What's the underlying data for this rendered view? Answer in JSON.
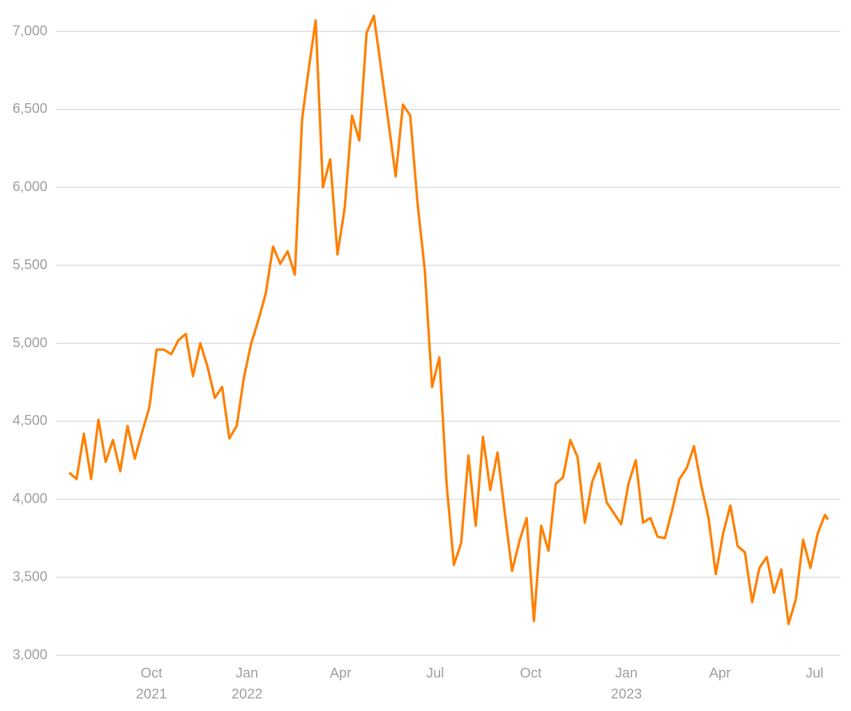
{
  "chart_data": {
    "type": "line",
    "x": [
      "2021-07-14",
      "2021-07-21",
      "2021-07-28",
      "2021-08-04",
      "2021-08-11",
      "2021-08-18",
      "2021-08-25",
      "2021-09-01",
      "2021-09-08",
      "2021-09-15",
      "2021-09-22",
      "2021-09-29",
      "2021-10-06",
      "2021-10-13",
      "2021-10-20",
      "2021-10-27",
      "2021-11-03",
      "2021-11-10",
      "2021-11-17",
      "2021-11-24",
      "2021-12-01",
      "2021-12-08",
      "2021-12-15",
      "2021-12-22",
      "2021-12-29",
      "2022-01-05",
      "2022-01-12",
      "2022-01-19",
      "2022-01-26",
      "2022-02-02",
      "2022-02-09",
      "2022-02-16",
      "2022-02-23",
      "2022-03-02",
      "2022-03-08",
      "2022-03-15",
      "2022-03-22",
      "2022-03-29",
      "2022-04-05",
      "2022-04-12",
      "2022-04-19",
      "2022-04-26",
      "2022-05-03",
      "2022-05-10",
      "2022-05-17",
      "2022-05-24",
      "2022-05-31",
      "2022-06-07",
      "2022-06-14",
      "2022-06-21",
      "2022-06-28",
      "2022-07-05",
      "2022-07-12",
      "2022-07-19",
      "2022-07-26",
      "2022-08-02",
      "2022-08-09",
      "2022-08-16",
      "2022-08-23",
      "2022-08-30",
      "2022-09-06",
      "2022-09-13",
      "2022-09-20",
      "2022-09-27",
      "2022-10-04",
      "2022-10-11",
      "2022-10-18",
      "2022-10-25",
      "2022-11-01",
      "2022-11-08",
      "2022-11-15",
      "2022-11-22",
      "2022-11-29",
      "2022-12-06",
      "2022-12-13",
      "2022-12-20",
      "2022-12-27",
      "2023-01-03",
      "2023-01-10",
      "2023-01-17",
      "2023-01-24",
      "2023-01-31",
      "2023-02-07",
      "2023-02-14",
      "2023-02-21",
      "2023-02-28",
      "2023-03-07",
      "2023-03-14",
      "2023-03-21",
      "2023-03-28",
      "2023-04-04",
      "2023-04-11",
      "2023-04-18",
      "2023-04-25",
      "2023-05-02",
      "2023-05-09",
      "2023-05-16",
      "2023-05-23",
      "2023-05-30",
      "2023-06-06",
      "2023-06-13",
      "2023-06-20",
      "2023-06-27",
      "2023-07-04",
      "2023-07-11",
      "2023-07-14"
    ],
    "series": [
      {
        "color": "#ff8000",
        "values": [
          4170,
          4130,
          4420,
          4130,
          4510,
          4240,
          4380,
          4180,
          4470,
          4260,
          4430,
          4590,
          4960,
          4960,
          4930,
          5020,
          5060,
          4790,
          5000,
          4850,
          4650,
          4720,
          4390,
          4470,
          4780,
          5000,
          5150,
          5320,
          5620,
          5510,
          5590,
          5440,
          6440,
          6790,
          7070,
          6000,
          6180,
          5570,
          5870,
          6460,
          6300,
          6990,
          7100,
          6760,
          6420,
          6070,
          6530,
          6460,
          5900,
          5470,
          4720,
          4910,
          4100,
          3580,
          3720,
          4280,
          3830,
          4400,
          4060,
          4300,
          3910,
          3540,
          3730,
          3880,
          3220,
          3830,
          3670,
          4100,
          4140,
          4380,
          4270,
          3850,
          4110,
          4230,
          3980,
          3910,
          3840,
          4100,
          4250,
          3850,
          3880,
          3760,
          3750,
          3930,
          4130,
          4200,
          4340,
          4090,
          3880,
          3520,
          3780,
          3960,
          3700,
          3660,
          3340,
          3560,
          3630,
          3400,
          3550,
          3200,
          3360,
          3740,
          3560,
          3780,
          3900,
          3870
        ]
      }
    ],
    "xlim": [
      "2021-07-01",
      "2023-07-26"
    ],
    "xticks": [
      {
        "value": "2021-10",
        "label": "Oct\n2021"
      },
      {
        "value": "2022-01",
        "label": "Jan\n2022"
      },
      {
        "value": "2022-04",
        "label": "Apr"
      },
      {
        "value": "2022-07",
        "label": "Jul"
      },
      {
        "value": "2022-10",
        "label": "Oct"
      },
      {
        "value": "2023-01",
        "label": "Jan\n2023"
      },
      {
        "value": "2023-04",
        "label": "Apr"
      },
      {
        "value": "2023-07",
        "label": "Jul"
      }
    ],
    "ylim": [
      3000,
      7000
    ],
    "yticks": [
      {
        "value": 3000,
        "label": "3,000"
      },
      {
        "value": 3500,
        "label": "3,500"
      },
      {
        "value": 4000,
        "label": "4,000"
      },
      {
        "value": 4500,
        "label": "4,500"
      },
      {
        "value": 5000,
        "label": "5,000"
      },
      {
        "value": 5500,
        "label": "5,500"
      },
      {
        "value": 6000,
        "label": "6,000"
      },
      {
        "value": 6500,
        "label": "6,500"
      },
      {
        "value": 7000,
        "label": "7,000"
      }
    ],
    "grid": true
  }
}
